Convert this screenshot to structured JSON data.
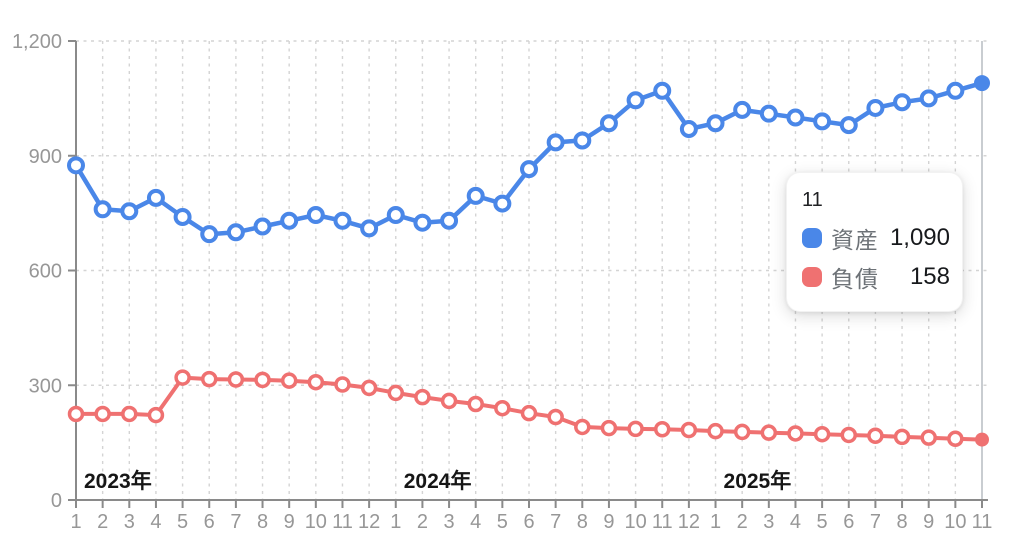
{
  "accent_colors": {
    "assets_blue": "#4a87e8",
    "liabilities_red": "#ef7171",
    "grid": "#d4d4d4",
    "axis": "#8a8a8a",
    "tick_text": "#979797",
    "year_text": "#161616",
    "hover_line": "#c9cdd1"
  },
  "tooltip": {
    "title": "11",
    "rows": [
      {
        "label": "資産",
        "value": "1,090",
        "color": "#4a87e8"
      },
      {
        "label": "負債",
        "value": "158",
        "color": "#ef7171"
      }
    ]
  },
  "chart_data": {
    "type": "line",
    "x_labels": [
      "1",
      "2",
      "3",
      "4",
      "5",
      "6",
      "7",
      "8",
      "9",
      "10",
      "11",
      "12",
      "1",
      "2",
      "3",
      "4",
      "5",
      "6",
      "7",
      "8",
      "9",
      "10",
      "11",
      "12",
      "1",
      "2",
      "3",
      "4",
      "5",
      "6",
      "7",
      "8",
      "9",
      "10",
      "11"
    ],
    "year_labels": [
      {
        "label": "2023年",
        "start_index": 0
      },
      {
        "label": "2024年",
        "start_index": 12
      },
      {
        "label": "2025年",
        "start_index": 24
      }
    ],
    "y_ticks": [
      0,
      300,
      600,
      900,
      1200
    ],
    "y_tick_labels": [
      "0",
      "300",
      "600",
      "900",
      "1,200"
    ],
    "ylim": [
      0,
      1200
    ],
    "grid": true,
    "legend_position": "tooltip-overlay",
    "hover_index": 34,
    "series": [
      {
        "name": "資産",
        "color": "#4a87e8",
        "values": [
          875,
          760,
          755,
          790,
          740,
          695,
          700,
          715,
          730,
          745,
          730,
          710,
          745,
          725,
          730,
          795,
          775,
          865,
          935,
          940,
          985,
          1045,
          1070,
          970,
          985,
          1020,
          1010,
          1000,
          990,
          980,
          1025,
          1040,
          1050,
          1070,
          1090
        ]
      },
      {
        "name": "負債",
        "color": "#ef7171",
        "values": [
          225,
          225,
          225,
          222,
          320,
          316,
          315,
          314,
          312,
          308,
          302,
          293,
          280,
          269,
          259,
          251,
          240,
          227,
          217,
          191,
          188,
          186,
          185,
          183,
          180,
          178,
          176,
          174,
          172,
          170,
          168,
          165,
          163,
          160,
          158
        ]
      }
    ]
  }
}
